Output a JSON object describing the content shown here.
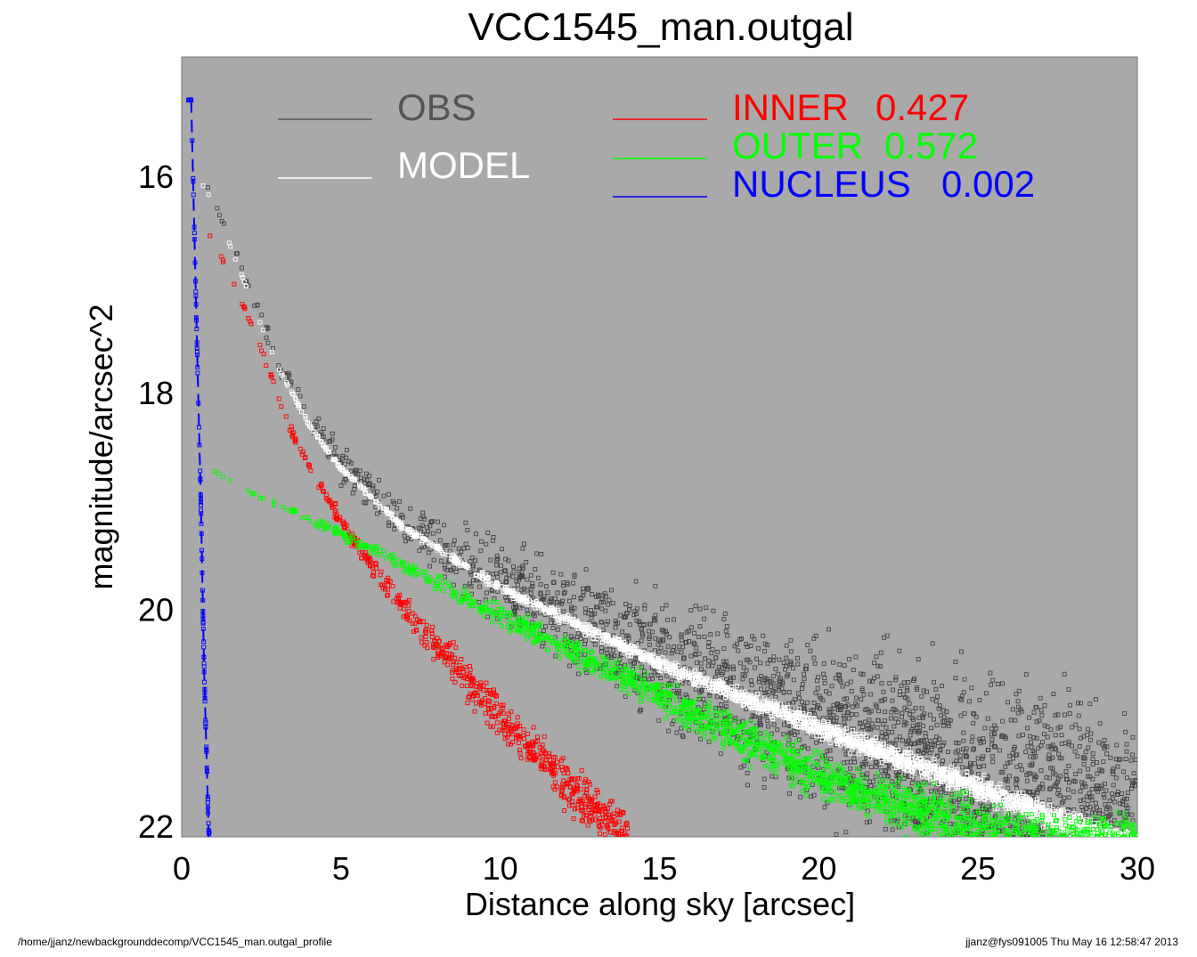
{
  "chart_data": {
    "type": "scatter",
    "title": "VCC1545_man.outgal",
    "xlabel": "Distance along sky [arcsec]",
    "ylabel": "magnitude/arcsec^2",
    "xlim": [
      0,
      30
    ],
    "ylim": [
      22.1,
      14.9
    ],
    "y_inverted": true,
    "x_ticks": [
      "0",
      "5",
      "10",
      "15",
      "20",
      "25",
      "30"
    ],
    "y_ticks": [
      "16",
      "18",
      "20",
      "22"
    ],
    "background_color": "#a9a9a9",
    "legend": [
      {
        "label": "OBS",
        "color": "#555555"
      },
      {
        "label": "MODEL",
        "color": "#ffffff"
      },
      {
        "label": "INNER",
        "value": "0.427",
        "color": "#ff0000"
      },
      {
        "label": "OUTER",
        "value": "0.572",
        "color": "#00ff00"
      },
      {
        "label": "NUCLEUS",
        "value": "0.002",
        "color": "#0000ff"
      }
    ],
    "series": [
      {
        "name": "OBS",
        "color": "#444444",
        "profile": "model",
        "x_range": [
          0.4,
          30
        ],
        "scatter": [
          0.0,
          1.1
        ]
      },
      {
        "name": "MODEL",
        "color": "#ffffff",
        "profile": "model",
        "x_range": [
          0.4,
          30
        ],
        "scatter": [
          0.0,
          0.12
        ]
      },
      {
        "name": "INNER",
        "color": "#ff0000",
        "profile": "inner",
        "x_range": [
          0.8,
          14
        ],
        "scatter": [
          0.0,
          0.25
        ]
      },
      {
        "name": "OUTER",
        "color": "#00ff00",
        "profile": "outer",
        "x_range": [
          0.6,
          30
        ],
        "scatter": [
          0.0,
          0.3
        ]
      },
      {
        "name": "NUCLEUS",
        "color": "#0000ff",
        "profile": "nucleus",
        "x_range": [
          0.1,
          0.9
        ],
        "scatter": [
          0.0,
          0.05
        ]
      }
    ],
    "profiles": {
      "model": [
        [
          0.4,
          15.95
        ],
        [
          1,
          16.25
        ],
        [
          2,
          17.0
        ],
        [
          3,
          17.75
        ],
        [
          4,
          18.3
        ],
        [
          5,
          18.7
        ],
        [
          7,
          19.25
        ],
        [
          10,
          19.8
        ],
        [
          15,
          20.5
        ],
        [
          20,
          21.1
        ],
        [
          25,
          21.65
        ],
        [
          28,
          22.0
        ],
        [
          30,
          22.2
        ]
      ],
      "inner": [
        [
          0.8,
          16.5
        ],
        [
          1.5,
          16.9
        ],
        [
          2.5,
          17.6
        ],
        [
          3.5,
          18.4
        ],
        [
          5,
          19.2
        ],
        [
          7,
          20.0
        ],
        [
          10,
          21.0
        ],
        [
          12,
          21.6
        ],
        [
          13.5,
          22.0
        ],
        [
          14,
          22.15
        ]
      ],
      "outer": [
        [
          0.6,
          18.65
        ],
        [
          2,
          18.9
        ],
        [
          5,
          19.3
        ],
        [
          10,
          20.05
        ],
        [
          15,
          20.8
        ],
        [
          20,
          21.55
        ],
        [
          25,
          22.05
        ],
        [
          27,
          22.2
        ]
      ],
      "nucleus": [
        [
          0.3,
          15.3
        ],
        [
          0.5,
          17.8
        ],
        [
          0.6,
          19.0
        ],
        [
          0.7,
          20.5
        ],
        [
          0.85,
          22.1
        ]
      ]
    }
  },
  "footer": {
    "path": "/home/jjanz/newbackgrounddecomp/VCC1545_man.outgal_profile",
    "stamp": "jjanz@fys091005  Thu May 16 12:58:47 2013"
  }
}
